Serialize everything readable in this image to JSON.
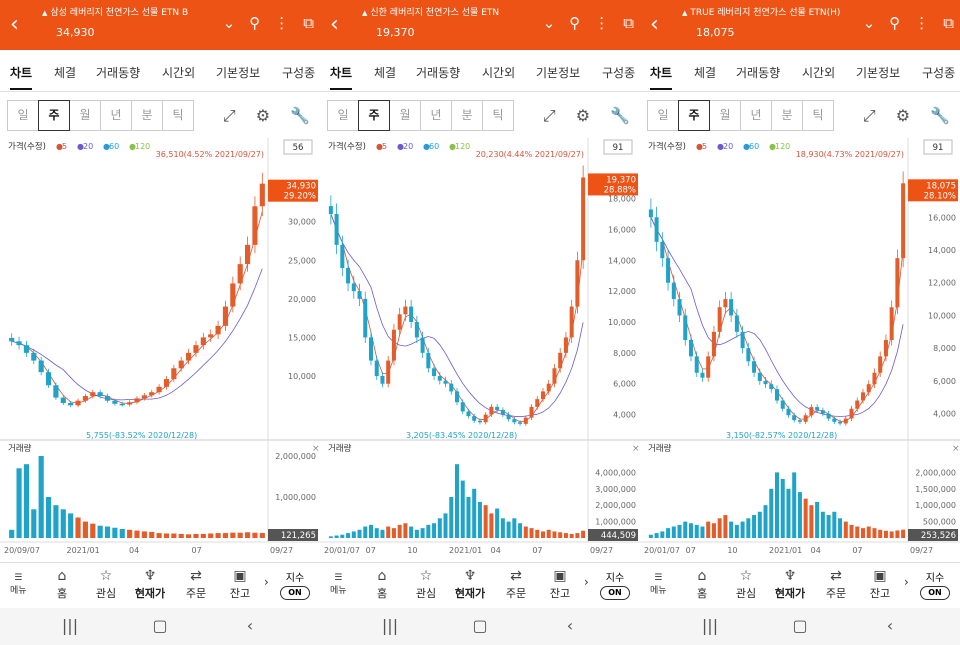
{
  "colors": {
    "header": "#ee5316",
    "up": "#e35d2b",
    "down": "#1fa3c9",
    "ma5": "#d9533b",
    "ma20": "#6b5bd1",
    "ma60": "#2a9ad8",
    "ma120": "#8bc34a"
  },
  "tabs": [
    "차트",
    "체결",
    "거래동향",
    "시간외",
    "기본정보",
    "구성종"
  ],
  "periods": [
    "일",
    "주",
    "월",
    "년",
    "분",
    "틱"
  ],
  "legend": {
    "label": "가격(수정)",
    "ma": [
      "5",
      "20",
      "60",
      "120"
    ]
  },
  "volume_label": "거래량",
  "bottom": {
    "menu": "메뉴",
    "items": [
      "홈",
      "관심",
      "현재가",
      "주문",
      "잔고"
    ],
    "index_label": "지수",
    "index_state": "ON"
  },
  "panels": [
    {
      "title": "삼성 레버리지 천연가스 선물 ETN B",
      "price": "34,930",
      "count": "56",
      "high_note": "36,510(4.52% 2021/09/27)",
      "low_note": "5,755(-83.52% 2020/12/28)",
      "cur_price": "34,930",
      "cur_pct": "29.20%",
      "vol_cur": "121,265",
      "xlabels": [
        "20/09/07",
        "2021/01",
        "04",
        "07",
        "09/27"
      ],
      "chart_data": {
        "type": "candlestick",
        "ylim": [
          3000,
          38000
        ],
        "yticks": [
          "30,000",
          "25,000",
          "20,000",
          "15,000",
          "10,000"
        ],
        "ytick_values": [
          30000,
          25000,
          20000,
          15000,
          10000
        ],
        "close": [
          14500,
          14000,
          13000,
          12000,
          10500,
          8800,
          7200,
          6500,
          6200,
          6800,
          7400,
          7900,
          7400,
          6800,
          6400,
          6300,
          6600,
          7100,
          7500,
          7900,
          8600,
          9600,
          11000,
          12000,
          13000,
          14000,
          15000,
          15400,
          16500,
          19000,
          22000,
          24500,
          27000,
          32000,
          34930
        ],
        "vol_max": 2000000,
        "vol_ticks": [
          "2,000,000",
          "1,000,000"
        ],
        "volume": [
          200000,
          1700000,
          1800000,
          700000,
          2000000,
          1000000,
          800000,
          700000,
          600000,
          500000,
          400000,
          350000,
          300000,
          280000,
          250000,
          220000,
          200000,
          180000,
          160000,
          150000,
          120000,
          110000,
          110000,
          100000,
          90000,
          100000,
          100000,
          110000,
          120000,
          120000,
          130000,
          130000,
          140000,
          130000,
          121265
        ]
      }
    },
    {
      "title": "신한 레버리지 천연가스 선물 ETN",
      "price": "19,370",
      "count": "91",
      "high_note": "20,230(4.44% 2021/09/27)",
      "low_note": "3,205(-83.45% 2020/12/28)",
      "cur_price": "19,370",
      "cur_pct": "28.88%",
      "vol_cur": "444,509",
      "xlabels": [
        "20/01/07",
        "07",
        "10",
        "2021/01",
        "04",
        "07",
        "09/27"
      ],
      "chart_data": {
        "type": "candlestick",
        "ylim": [
          3000,
          20500
        ],
        "yticks": [
          "18,000",
          "16,000",
          "14,000",
          "12,000",
          "10,000",
          "8,000",
          "6,000",
          "4,000"
        ],
        "ytick_values": [
          18000,
          16000,
          14000,
          12000,
          10000,
          8000,
          6000,
          4000
        ],
        "close": [
          17000,
          15000,
          13500,
          12500,
          12000,
          11500,
          9000,
          7500,
          6500,
          6000,
          7500,
          9500,
          10500,
          11000,
          10000,
          9000,
          8000,
          7000,
          6500,
          6200,
          6000,
          5500,
          4800,
          4200,
          3900,
          3600,
          3500,
          4000,
          4500,
          4300,
          4000,
          3700,
          3500,
          3400,
          3800,
          4500,
          5000,
          5500,
          6000,
          7000,
          8000,
          9000,
          11000,
          14000,
          19370
        ],
        "vol_max": 5000000,
        "vol_ticks": [
          "4,000,000",
          "3,000,000",
          "2,000,000",
          "1,000,000"
        ],
        "volume": [
          100000,
          150000,
          200000,
          300000,
          400000,
          500000,
          700000,
          800000,
          600000,
          500000,
          700000,
          600000,
          800000,
          900000,
          700000,
          500000,
          600000,
          800000,
          900000,
          1200000,
          1500000,
          2500000,
          4500000,
          3500000,
          2500000,
          3000000,
          2200000,
          2000000,
          1500000,
          1800000,
          1200000,
          1000000,
          1200000,
          900000,
          700000,
          600000,
          500000,
          400000,
          500000,
          400000,
          350000,
          300000,
          250000,
          300000,
          444509
        ]
      }
    },
    {
      "title": "TRUE 레버리지 천연가스 선물 ETN(H)",
      "price": "18,075",
      "count": "91",
      "high_note": "18,930(4.73% 2021/09/27)",
      "low_note": "3,150(-82.57% 2020/12/28)",
      "cur_price": "18,075",
      "cur_pct": "28.10%",
      "vol_cur": "253,526",
      "xlabels": [
        "20/01/07",
        "07",
        "10",
        "2021/01",
        "04",
        "07",
        "09/27"
      ],
      "chart_data": {
        "type": "candlestick",
        "ylim": [
          3000,
          19500
        ],
        "yticks": [
          "16,000",
          "14,000",
          "12,000",
          "10,000",
          "8,000",
          "6,000",
          "4,000"
        ],
        "ytick_values": [
          16000,
          14000,
          12000,
          10000,
          8000,
          6000,
          4000
        ],
        "close": [
          16000,
          14500,
          13500,
          12000,
          11000,
          10000,
          8500,
          7500,
          6500,
          6200,
          7500,
          9000,
          10500,
          11000,
          10000,
          9000,
          8000,
          7200,
          6500,
          6000,
          5800,
          5500,
          4800,
          4300,
          3900,
          3600,
          3500,
          3900,
          4400,
          4200,
          4000,
          3700,
          3500,
          3400,
          3700,
          4300,
          4800,
          5300,
          5800,
          6500,
          7500,
          8500,
          10500,
          13500,
          18075
        ],
        "vol_max": 2500000,
        "vol_ticks": [
          "2,000,000",
          "1,500,000",
          "1,000,000",
          "500,000"
        ],
        "volume": [
          100000,
          150000,
          200000,
          300000,
          350000,
          400000,
          500000,
          450000,
          400000,
          350000,
          500000,
          450000,
          600000,
          700000,
          500000,
          400000,
          500000,
          600000,
          700000,
          800000,
          1000000,
          1500000,
          2000000,
          1800000,
          1500000,
          2000000,
          1400000,
          1200000,
          1000000,
          1100000,
          800000,
          700000,
          800000,
          600000,
          500000,
          400000,
          350000,
          300000,
          350000,
          300000,
          250000,
          220000,
          200000,
          230000,
          253526
        ]
      }
    }
  ]
}
